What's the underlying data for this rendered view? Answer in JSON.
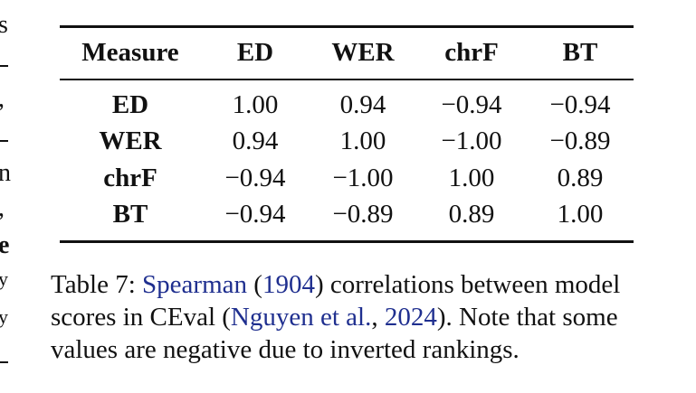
{
  "left_fragments": [
    "s",
    ",",
    "n",
    ",",
    "e",
    "y",
    "y"
  ],
  "table": {
    "headers": [
      "Measure",
      "ED",
      "WER",
      "chrF",
      "BT"
    ],
    "rows": [
      {
        "label": "ED",
        "values": [
          "1.00",
          "0.94",
          "−0.94",
          "−0.94"
        ]
      },
      {
        "label": "WER",
        "values": [
          "0.94",
          "1.00",
          "−1.00",
          "−0.89"
        ]
      },
      {
        "label": "chrF",
        "values": [
          "−0.94",
          "−1.00",
          "1.00",
          "0.89"
        ]
      },
      {
        "label": "BT",
        "values": [
          "−0.94",
          "−0.89",
          "0.89",
          "1.00"
        ]
      }
    ]
  },
  "caption": {
    "line1_a": "Table 7: ",
    "cite1_name": "Spearman",
    "cite1_paren_open": " (",
    "cite1_year": "1904",
    "line1_b": ") correlations between model",
    "line2_a": "scores in CEval (",
    "cite2_name": "Nguyen et al.",
    "cite2_sep": ", ",
    "cite2_year": "2024",
    "line2_b": "). Note that some",
    "line3": "values are negative due to inverted rankings."
  },
  "colors": {
    "text": "#111111",
    "citation": "#1f2f8f",
    "background": "#ffffff"
  }
}
